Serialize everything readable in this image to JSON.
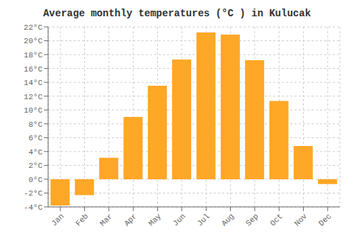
{
  "chart_data": {
    "type": "bar",
    "title": "Average monthly temperatures (°C ) in Kulucak",
    "categories": [
      "Jan",
      "Feb",
      "Mar",
      "Apr",
      "May",
      "Jun",
      "Jul",
      "Aug",
      "Sep",
      "Oct",
      "Nov",
      "Dec"
    ],
    "values": [
      -3.8,
      -2.3,
      3.1,
      9.0,
      13.5,
      17.3,
      21.2,
      20.9,
      17.2,
      11.3,
      4.8,
      -0.7
    ],
    "color": "#FFA726",
    "ylim": [
      -4,
      22
    ],
    "yticks": [
      {
        "value": -4,
        "label": "-4°C"
      },
      {
        "value": -2,
        "label": "-2°C"
      },
      {
        "value": 0,
        "label": "0°C"
      },
      {
        "value": 2,
        "label": "2°C"
      },
      {
        "value": 4,
        "label": "4°C"
      },
      {
        "value": 6,
        "label": "6°C"
      },
      {
        "value": 8,
        "label": "8°C"
      },
      {
        "value": 10,
        "label": "10°C"
      },
      {
        "value": 12,
        "label": "12°C"
      },
      {
        "value": 14,
        "label": "14°C"
      },
      {
        "value": 16,
        "label": "16°C"
      },
      {
        "value": 18,
        "label": "18°C"
      },
      {
        "value": 20,
        "label": "20°C"
      },
      {
        "value": 22,
        "label": "22°C"
      }
    ],
    "grid": true
  }
}
